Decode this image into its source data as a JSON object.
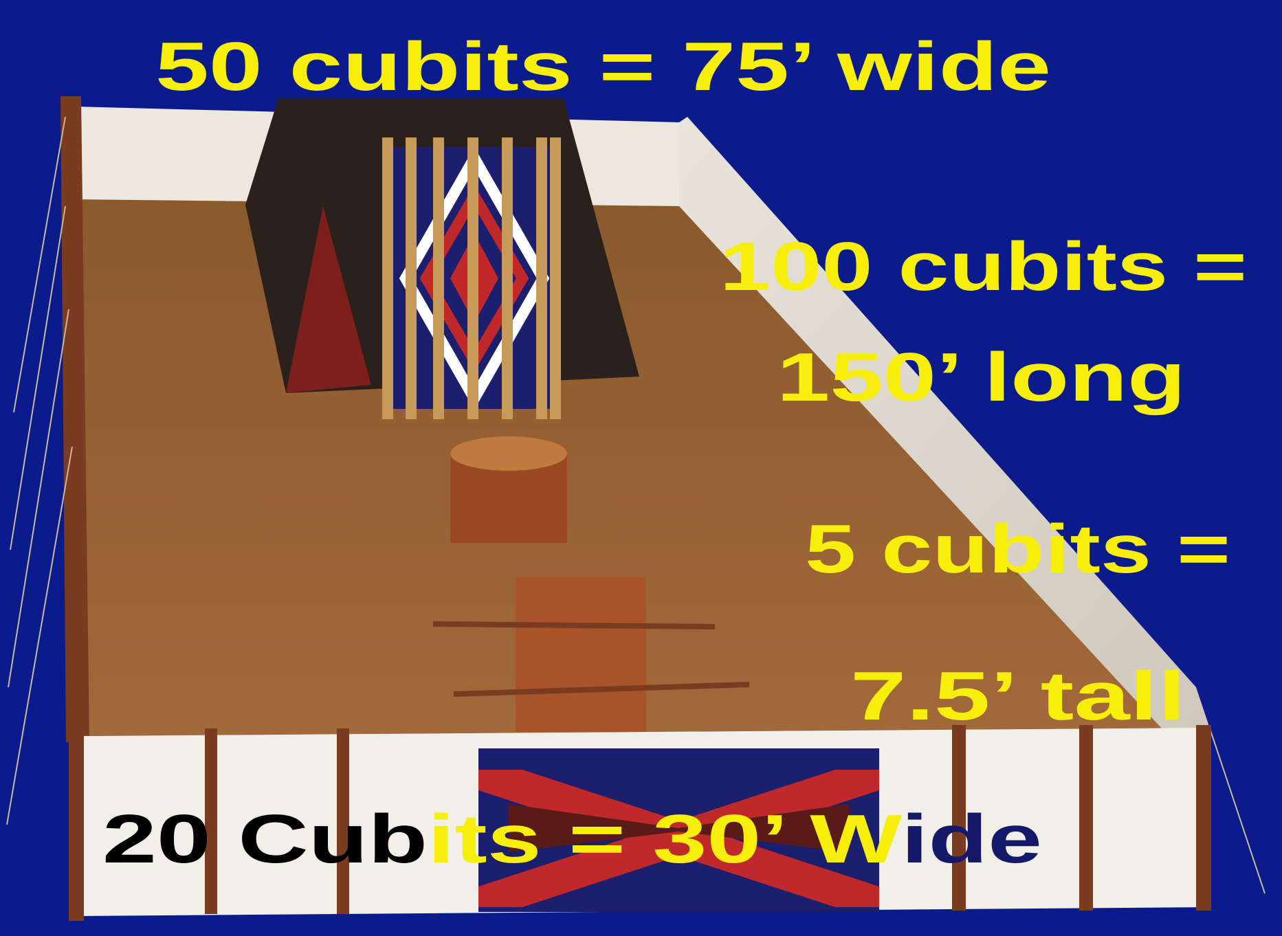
{
  "labels": {
    "width": "50 cubits = 75’ wide",
    "length_1": "100 cubits =",
    "length_2": "150’ long",
    "height_1": "5 cubits =",
    "height_2": "7.5’ tall",
    "gate_width": [
      "20 Cub",
      "its = 30’ W",
      "ide"
    ]
  }
}
